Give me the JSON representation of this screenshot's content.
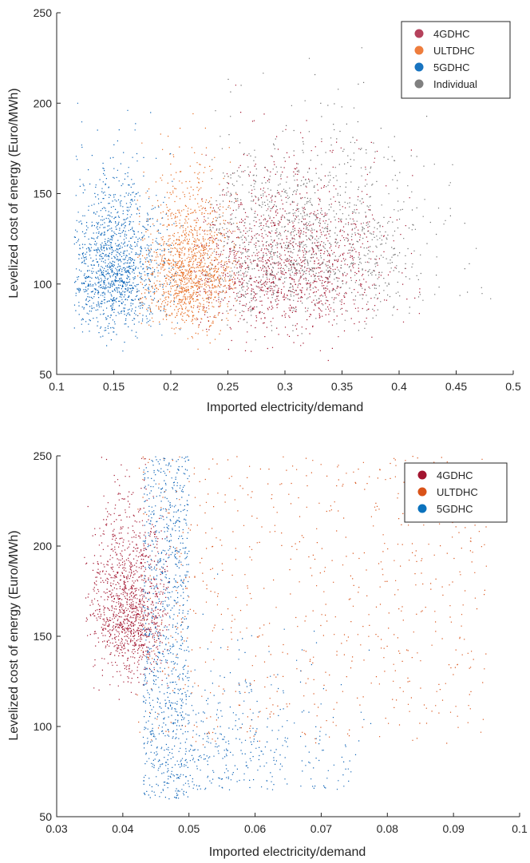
{
  "chart_data": [
    {
      "type": "scatter",
      "xlabel": "Imported electricity/demand",
      "ylabel": "Levelized cost of energy (Euro/MWh)",
      "xlim": [
        0.1,
        0.5
      ],
      "ylim": [
        50,
        250
      ],
      "xticks": [
        "0.1",
        "0.15",
        "0.2",
        "0.25",
        "0.3",
        "0.35",
        "0.4",
        "0.45",
        "0.5"
      ],
      "yticks": [
        "50",
        "100",
        "150",
        "200",
        "250"
      ],
      "legend_position": "top-right",
      "grid": false,
      "series": [
        {
          "name": "4GDHC",
          "color": "#a2142f",
          "legend_color": "#b5425c",
          "cloud": {
            "x_range": [
              0.22,
              0.42
            ],
            "y_range": [
              50,
              215
            ],
            "center": [
              0.3,
              95
            ]
          }
        },
        {
          "name": "ULTDHC",
          "color": "#e66a1e",
          "legend_color": "#ee7d3d",
          "cloud": {
            "x_range": [
              0.17,
              0.26
            ],
            "y_range": [
              50,
              195
            ],
            "center": [
              0.215,
              95
            ]
          }
        },
        {
          "name": "5GDHC",
          "color": "#0a64b8",
          "legend_color": "#1874c0",
          "cloud": {
            "x_range": [
              0.115,
              0.21
            ],
            "y_range": [
              50,
              205
            ],
            "center": [
              0.15,
              95
            ]
          }
        },
        {
          "name": "Individual",
          "color": "#6e6e6e",
          "legend_color": "#808080",
          "cloud": {
            "x_range": [
              0.23,
              0.49
            ],
            "y_range": [
              55,
              237
            ],
            "center": [
              0.31,
              105
            ]
          }
        }
      ]
    },
    {
      "type": "scatter",
      "xlabel": "Imported electricity/demand",
      "ylabel": "Levelized cost of energy (Euro/MWh)",
      "xlim": [
        0.03,
        0.1
      ],
      "ylim": [
        50,
        250
      ],
      "xticks": [
        "0.03",
        "0.04",
        "0.05",
        "0.06",
        "0.07",
        "0.08",
        "0.09",
        "0.1"
      ],
      "yticks": [
        "50",
        "100",
        "150",
        "200",
        "250"
      ],
      "legend_position": "top-right",
      "grid": false,
      "series": [
        {
          "name": "4GDHC",
          "color": "#a2142f",
          "legend_color": "#a2142f",
          "cloud": {
            "x_range": [
              0.034,
              0.047
            ],
            "y_range": [
              75,
              250
            ],
            "center": [
              0.041,
              150
            ]
          }
        },
        {
          "name": "ULTDHC",
          "color": "#d95319",
          "legend_color": "#d95319",
          "cloud": {
            "x_range": [
              0.04,
              0.095
            ],
            "y_range": [
              85,
              250
            ],
            "center": [
              0.07,
              170
            ]
          }
        },
        {
          "name": "5GDHC",
          "color": "#0b62b6",
          "legend_color": "#0b72bd",
          "cloud": {
            "x_range": [
              0.043,
              0.083
            ],
            "y_range": [
              58,
              250
            ],
            "center": [
              0.047,
              140
            ]
          }
        }
      ]
    }
  ]
}
